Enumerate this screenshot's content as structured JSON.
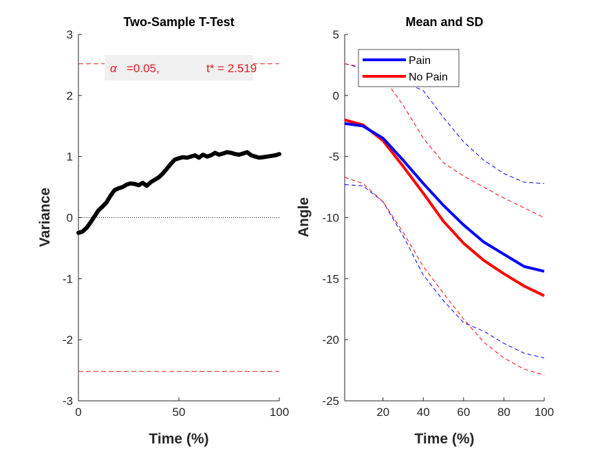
{
  "chart_data": [
    {
      "type": "line",
      "title": "Two-Sample T-Test",
      "xlabel": "Time (%)",
      "ylabel": "Variance",
      "xlim": [
        0,
        100
      ],
      "ylim": [
        -3,
        3
      ],
      "xticks": [
        "0",
        "50",
        "100"
      ],
      "yticks": [
        "-3",
        "-2",
        "-1",
        "0",
        "1",
        "2",
        "3"
      ],
      "grid": false,
      "annotation": {
        "alpha_symbol": "α",
        "alpha_text": "=0.05,",
        "t_text": "t* = 2.519"
      },
      "threshold": 2.519,
      "zero_line": 0,
      "series": [
        {
          "color": "#000000",
          "x": [
            0,
            2,
            4,
            6,
            8,
            10,
            12,
            14,
            16,
            18,
            20,
            22,
            24,
            26,
            28,
            30,
            32,
            34,
            36,
            38,
            40,
            42,
            44,
            46,
            48,
            50,
            52,
            54,
            56,
            58,
            60,
            62,
            64,
            66,
            68,
            70,
            72,
            74,
            76,
            78,
            80,
            82,
            84,
            86,
            88,
            90,
            92,
            94,
            96,
            98,
            100
          ],
          "y": [
            -0.25,
            -0.23,
            -0.17,
            -0.08,
            0.02,
            0.12,
            0.18,
            0.25,
            0.36,
            0.45,
            0.48,
            0.5,
            0.54,
            0.56,
            0.55,
            0.53,
            0.57,
            0.52,
            0.58,
            0.62,
            0.66,
            0.72,
            0.8,
            0.88,
            0.95,
            0.97,
            0.99,
            0.98,
            1.0,
            1.02,
            0.98,
            1.03,
            1.0,
            1.02,
            1.06,
            1.03,
            1.05,
            1.07,
            1.06,
            1.04,
            1.03,
            1.05,
            1.07,
            1.02,
            1.0,
            0.98,
            0.99,
            1.0,
            1.01,
            1.02,
            1.04
          ]
        }
      ]
    },
    {
      "type": "line",
      "title": "Mean and SD",
      "xlabel": "Time (%)",
      "ylabel": "Angle",
      "xlim": [
        1,
        100
      ],
      "ylim": [
        -25,
        5
      ],
      "xticks": [
        "20",
        "40",
        "60",
        "80",
        "100"
      ],
      "yticks": [
        "-25",
        "-20",
        "-15",
        "-10",
        "-5",
        "0",
        "5"
      ],
      "grid": false,
      "legend_position": "top-left",
      "categories": [
        1,
        10,
        20,
        30,
        40,
        50,
        60,
        70,
        80,
        90,
        100
      ],
      "series": [
        {
          "name": "Pain",
          "color": "#0000ff",
          "style": "solid",
          "values": [
            -2.3,
            -2.5,
            -3.5,
            -5.3,
            -7.2,
            -9.0,
            -10.6,
            -12.0,
            -13.0,
            -14.0,
            -14.4
          ]
        },
        {
          "name": "No Pain",
          "color": "#ff0000",
          "style": "solid",
          "values": [
            -2.0,
            -2.4,
            -3.7,
            -5.8,
            -8.0,
            -10.3,
            -12.1,
            -13.5,
            -14.6,
            -15.6,
            -16.4
          ]
        },
        {
          "color": "#0000ff",
          "style": "dashed",
          "values": [
            2.6,
            2.2,
            1.7,
            1.1,
            0.4,
            -1.8,
            -3.8,
            -5.3,
            -6.4,
            -7.1,
            -7.2
          ]
        },
        {
          "color": "#0000ff",
          "style": "dashed",
          "values": [
            -7.3,
            -7.4,
            -8.7,
            -11.5,
            -14.7,
            -16.8,
            -18.6,
            -19.3,
            -20.3,
            -21.1,
            -21.5
          ]
        },
        {
          "color": "#ff0000",
          "style": "dashed",
          "values": [
            2.6,
            2.3,
            1.5,
            -0.8,
            -3.5,
            -5.5,
            -6.6,
            -7.5,
            -8.4,
            -9.2,
            -10.0
          ]
        },
        {
          "color": "#ff0000",
          "style": "dashed",
          "values": [
            -6.7,
            -7.2,
            -8.7,
            -11.2,
            -14.0,
            -16.2,
            -18.3,
            -20.2,
            -21.5,
            -22.4,
            -22.9
          ]
        }
      ]
    }
  ]
}
